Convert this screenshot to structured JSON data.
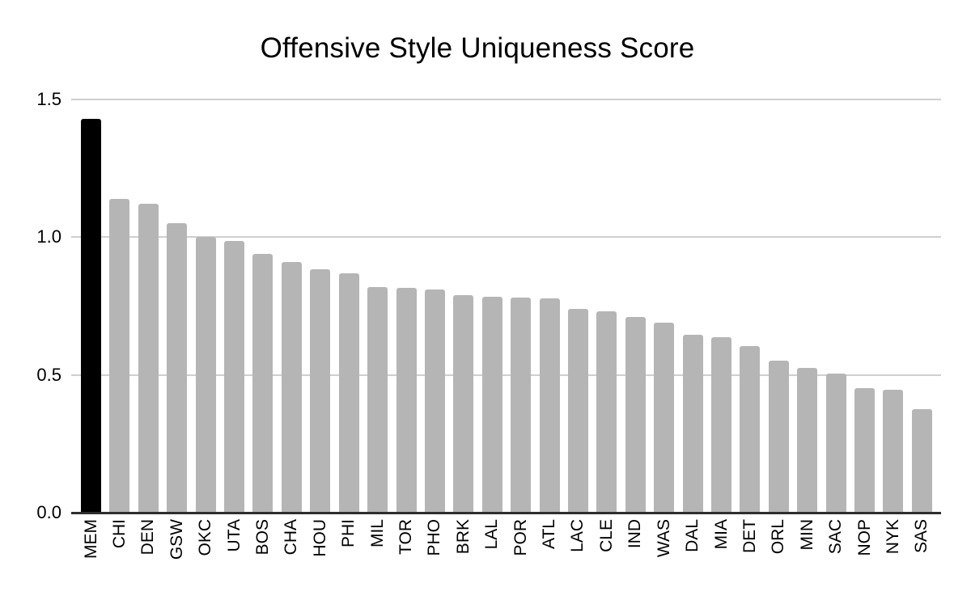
{
  "chart_data": {
    "type": "bar",
    "title": "Offensive Style Uniqueness Score",
    "xlabel": "",
    "ylabel": "",
    "categories": [
      "MEM",
      "CHI",
      "DEN",
      "GSW",
      "OKC",
      "UTA",
      "BOS",
      "CHA",
      "HOU",
      "PHI",
      "MIL",
      "TOR",
      "PHO",
      "BRK",
      "LAL",
      "POR",
      "ATL",
      "LAC",
      "CLE",
      "IND",
      "WAS",
      "DAL",
      "MIA",
      "DET",
      "ORL",
      "MIN",
      "SAC",
      "NOP",
      "NYK",
      "SAS"
    ],
    "values": [
      1.43,
      1.14,
      1.12,
      1.05,
      1.0,
      0.985,
      0.94,
      0.91,
      0.885,
      0.87,
      0.82,
      0.815,
      0.81,
      0.79,
      0.785,
      0.78,
      0.778,
      0.74,
      0.73,
      0.71,
      0.69,
      0.647,
      0.638,
      0.604,
      0.552,
      0.526,
      0.504,
      0.452,
      0.445,
      0.377
    ],
    "highlighted_category": "MEM",
    "ylim": [
      0,
      1.5
    ],
    "yticks": [
      "0.0",
      "0.5",
      "1.0",
      "1.5"
    ],
    "ytick_values": [
      0,
      0.5,
      1.0,
      1.5
    ],
    "grid": "horizontal gridlines on",
    "legend": "none",
    "colors": {
      "bar_default": "#b5b5b5",
      "bar_highlight": "#000000",
      "gridline": "#cfcfcf",
      "axis_line": "#2e2e2e",
      "text": "#000000"
    }
  }
}
